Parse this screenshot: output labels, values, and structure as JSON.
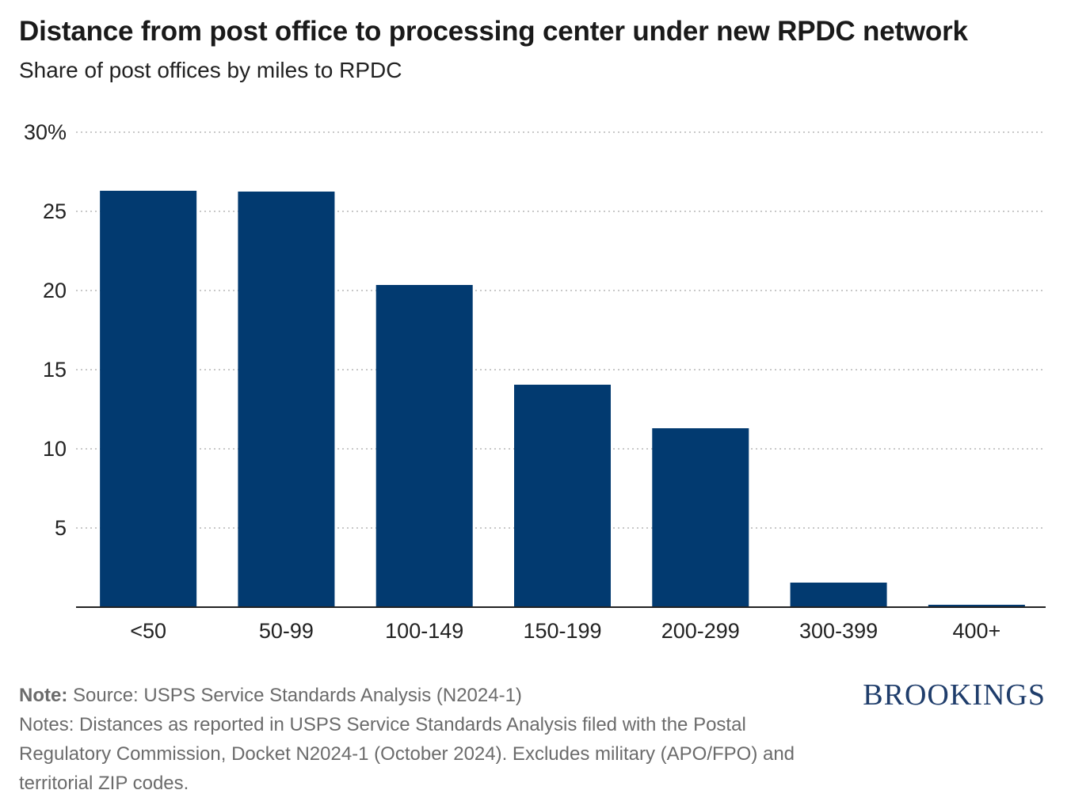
{
  "header": {
    "title": "Distance from post office to processing center under new RPDC network",
    "subtitle": "Share of post offices by miles to RPDC"
  },
  "chart_data": {
    "type": "bar",
    "title": "Distance from post office to processing center under new RPDC network",
    "subtitle": "Share of post offices by miles to RPDC",
    "categories": [
      "<50",
      "50-99",
      "100-149",
      "150-199",
      "200-299",
      "300-399",
      "400+"
    ],
    "values": [
      26.3,
      26.25,
      20.35,
      14.05,
      11.3,
      1.55,
      0.15
    ],
    "ylim": [
      0,
      30
    ],
    "yticks": [
      {
        "value": 30,
        "label": "30%"
      },
      {
        "value": 25,
        "label": "25"
      },
      {
        "value": 20,
        "label": "20"
      },
      {
        "value": 15,
        "label": "15"
      },
      {
        "value": 10,
        "label": "10"
      },
      {
        "value": 5,
        "label": "5"
      }
    ],
    "xlabel": "",
    "ylabel": "",
    "grid": true,
    "bar_color": "#023a70"
  },
  "footer": {
    "note_label": "Note:",
    "note_text": " Source: USPS Service Standards Analysis (N2024-1)",
    "notes_text": "Notes: Distances as reported in USPS Service Standards Analysis filed with the Postal Regulatory Commission, Docket N2024-1 (October 2024). Excludes military (APO/FPO) and territorial ZIP codes."
  },
  "brand": {
    "logo_text": "BROOKINGS"
  }
}
